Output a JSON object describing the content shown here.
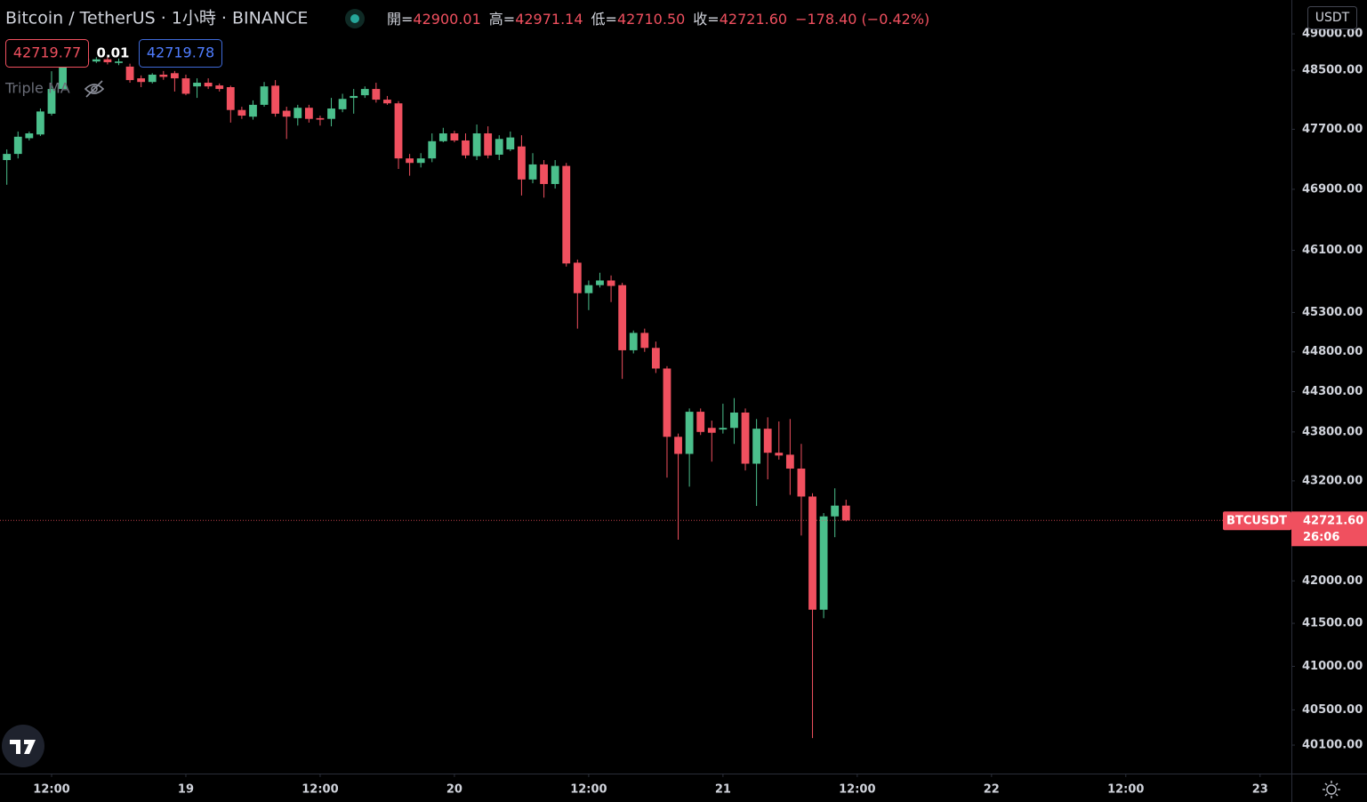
{
  "header": {
    "symbol": "Bitcoin / TetherUS · 1小時 · BINANCE",
    "ohlc": [
      {
        "label": "開=",
        "value": "42900.01"
      },
      {
        "label": "高=",
        "value": "42971.14"
      },
      {
        "label": "低=",
        "value": "42710.50"
      },
      {
        "label": "收=",
        "value": "42721.60"
      }
    ],
    "change": "−178.40 (−0.42%)"
  },
  "trading": {
    "sell": "42719.77",
    "spread": "0.01",
    "buy": "42719.78"
  },
  "indicator": "Triple MA",
  "currency": "USDT",
  "chart_data": {
    "type": "candlestick",
    "log_scale": true,
    "grid": false,
    "up_color": "#4bbf8c",
    "down_color": "#f0505f",
    "x": [
      8,
      9,
      10,
      11,
      12,
      13,
      14,
      15,
      16,
      17,
      18,
      19,
      20,
      21,
      22,
      23,
      24,
      25,
      26,
      27,
      28,
      29,
      30,
      31,
      32,
      33,
      34,
      35,
      36,
      37,
      38,
      39,
      40,
      41,
      42,
      43,
      44,
      45,
      46,
      47,
      48,
      49,
      50,
      51,
      52,
      53,
      54,
      55,
      56,
      57,
      58,
      59,
      60,
      61,
      62,
      63,
      64,
      65,
      66,
      67,
      68,
      69,
      70,
      71,
      72,
      73,
      74,
      75,
      76,
      77,
      78,
      79,
      80,
      81,
      82,
      83
    ],
    "open": [
      47288,
      47370,
      47580,
      47630,
      47910,
      48245,
      48620,
      48660,
      48620,
      48650,
      48600,
      48550,
      48390,
      48340,
      48440,
      48460,
      48390,
      48280,
      48330,
      48293,
      48270,
      47960,
      47870,
      48030,
      48290,
      47950,
      47850,
      47990,
      47850,
      47840,
      47970,
      48124,
      48160,
      48245,
      48100,
      48050,
      47310,
      47250,
      47310,
      47540,
      47645,
      47550,
      47340,
      47645,
      47360,
      47430,
      47470,
      47030,
      47230,
      46970,
      47210,
      45940,
      45547,
      45650,
      45710,
      45650,
      44820,
      45040,
      44850,
      44590,
      43740,
      43530,
      44050,
      43850,
      43830,
      43850,
      44040,
      43410,
      43840,
      43544,
      43520,
      43350,
      43010,
      41660,
      42770,
      42900.01
    ],
    "high": [
      47430,
      47670,
      47670,
      47980,
      48487,
      48610,
      48790,
      48710,
      48680,
      48680,
      48660,
      48590,
      48430,
      48460,
      48490,
      48490,
      48440,
      48390,
      48390,
      48320,
      48290,
      48004,
      48090,
      48340,
      48366,
      48004,
      48030,
      48030,
      47884,
      48124,
      48180,
      48245,
      48280,
      48330,
      48150,
      48080,
      47370,
      47380,
      47645,
      47720,
      47680,
      47645,
      47764,
      47740,
      47620,
      47670,
      47620,
      47380,
      47288,
      47288,
      47250,
      45980,
      45710,
      45810,
      45775,
      45680,
      45070,
      45094,
      44930,
      44620,
      43780,
      44091,
      44091,
      43940,
      44150,
      44220,
      44091,
      43960,
      43981,
      43930,
      43960,
      43653,
      43050,
      42810,
      43110,
      42971.14
    ],
    "low": [
      46960,
      47310,
      47550,
      47610,
      47884,
      48245,
      48610,
      48580,
      48600,
      48580,
      48570,
      48330,
      48270,
      48320,
      48370,
      48210,
      48160,
      48124,
      48245,
      48210,
      47790,
      47840,
      47830,
      48004,
      47870,
      47570,
      47750,
      47790,
      47750,
      47740,
      47930,
      47910,
      48124,
      48060,
      48030,
      47170,
      47080,
      47190,
      47260,
      47526,
      47526,
      47310,
      47288,
      47310,
      47288,
      47407,
      46818,
      46980,
      46790,
      46910,
      45890,
      45094,
      45330,
      45620,
      45433,
      44460,
      44780,
      44800,
      44534,
      43240,
      42490,
      43130,
      43762,
      43435,
      43780,
      43653,
      43327,
      42896,
      43219,
      43460,
      43030,
      42540,
      40180,
      41560,
      42520,
      42710.5
    ],
    "close": [
      47370,
      47600,
      47645,
      47940,
      48245,
      48550,
      48660,
      48610,
      48650,
      48610,
      48620,
      48366,
      48340,
      48440,
      48410,
      48390,
      48180,
      48330,
      48280,
      48245,
      47960,
      47884,
      48030,
      48280,
      47910,
      47870,
      47990,
      47840,
      47830,
      47980,
      48110,
      48150,
      48245,
      48100,
      48050,
      47310,
      47250,
      47310,
      47540,
      47645,
      47550,
      47350,
      47645,
      47350,
      47570,
      47590,
      47030,
      47230,
      46970,
      47210,
      45930,
      45547,
      45650,
      45710,
      45640,
      44820,
      45040,
      44850,
      44590,
      43740,
      43530,
      44050,
      43800,
      43790,
      43850,
      44040,
      43410,
      43840,
      43544,
      43510,
      43350,
      43010,
      41660,
      42770,
      42900,
      42721.6
    ],
    "xlim": [
      7.39,
      122.8
    ],
    "xticks": [
      {
        "value": 12,
        "label": "12:00"
      },
      {
        "value": 24,
        "label": "19"
      },
      {
        "value": 36,
        "label": "12:00"
      },
      {
        "value": 48,
        "label": "20"
      },
      {
        "value": 60,
        "label": "12:00"
      },
      {
        "value": 72,
        "label": "21"
      },
      {
        "value": 84,
        "label": "12:00"
      },
      {
        "value": 96,
        "label": "22"
      },
      {
        "value": 108,
        "label": "12:00"
      },
      {
        "value": 120,
        "label": "23"
      }
    ],
    "ylim": [
      39780,
      49470
    ],
    "yticks": [
      {
        "value": 49000,
        "label": "49000.00"
      },
      {
        "value": 48500,
        "label": "48500.00"
      },
      {
        "value": 47700,
        "label": "47700.00"
      },
      {
        "value": 46900,
        "label": "46900.00"
      },
      {
        "value": 46100,
        "label": "46100.00"
      },
      {
        "value": 45300,
        "label": "45300.00"
      },
      {
        "value": 44800,
        "label": "44800.00"
      },
      {
        "value": 44300,
        "label": "44300.00"
      },
      {
        "value": 43800,
        "label": "43800.00"
      },
      {
        "value": 43200,
        "label": "43200.00"
      },
      {
        "value": 42000,
        "label": "42000.00"
      },
      {
        "value": 41500,
        "label": "41500.00"
      },
      {
        "value": 41000,
        "label": "41000.00"
      },
      {
        "value": 40500,
        "label": "40500.00"
      },
      {
        "value": 40100,
        "label": "40100.00"
      }
    ],
    "price_line": {
      "name": "BTCUSDT",
      "value": 42721.6,
      "label": "42721.60",
      "countdown": "26:06"
    }
  }
}
